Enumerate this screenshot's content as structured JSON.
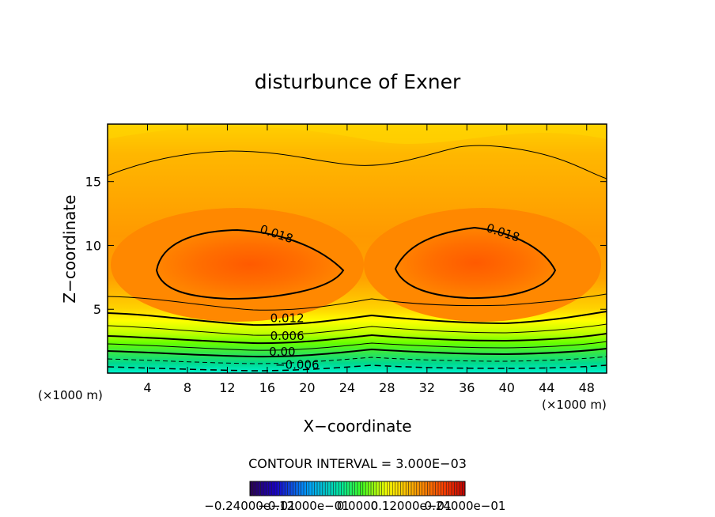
{
  "chart_data": {
    "type": "contour",
    "title": "disturbunce of Exner",
    "xlabel": "X−coordinate",
    "ylabel": "Z−coordinate",
    "x_unit": "(×1000 m)",
    "y_unit": "(×1000 m)",
    "xlim": [
      0,
      50
    ],
    "ylim": [
      0,
      19.5
    ],
    "x_ticks": [
      4,
      8,
      12,
      16,
      20,
      24,
      28,
      32,
      36,
      40,
      44,
      48
    ],
    "y_ticks": [
      5,
      10,
      15
    ],
    "contour_interval_text": "CONTOUR INTERVAL = 3.000E−03",
    "contour_labels": [
      {
        "text": "0.018",
        "x": 16.8,
        "z": 10.6
      },
      {
        "text": "0.018",
        "x": 39.5,
        "z": 10.7
      },
      {
        "text": "0.012",
        "x": 18,
        "z": 4.0
      },
      {
        "text": "0.006",
        "x": 18,
        "z": 2.6
      },
      {
        "text": "0.00",
        "x": 17.5,
        "z": 1.35
      },
      {
        "text": "−0.006",
        "x": 19,
        "z": 0.35
      }
    ],
    "colorbar_labels": [
      "−0.24000e−01",
      "−0.12000e−01",
      "0.0000",
      "0.12000e−01",
      "0.24000e−01"
    ],
    "colorbar_range": [
      -0.024,
      0.024
    ],
    "fill_levels": [
      -0.009,
      -0.006,
      -0.003,
      0,
      0.003,
      0.006,
      0.009,
      0.012,
      0.015,
      0.018,
      0.021
    ],
    "grid": false
  }
}
